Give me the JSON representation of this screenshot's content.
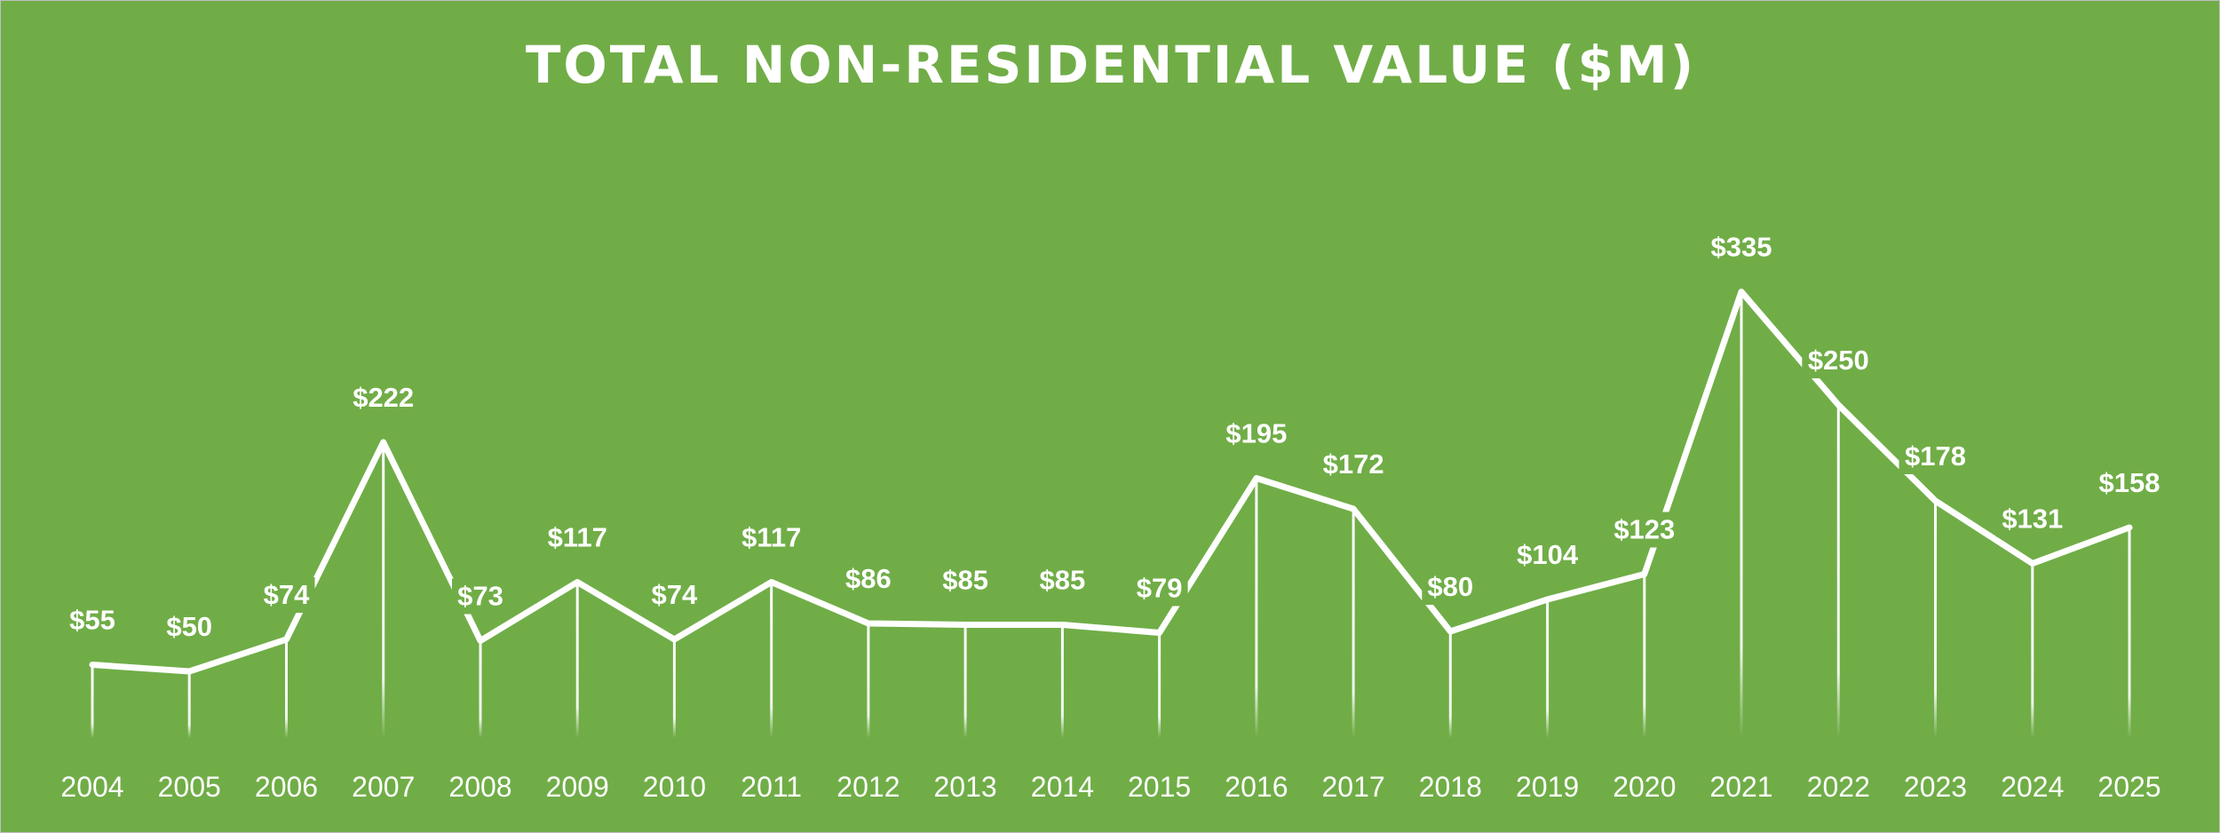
{
  "chart_data": {
    "type": "line",
    "title": "TOTAL NON-RESIDENTIAL VALUE ($M)",
    "xlabel": "",
    "ylabel": "",
    "categories": [
      "2004",
      "2005",
      "2006",
      "2007",
      "2008",
      "2009",
      "2010",
      "2011",
      "2012",
      "2013",
      "2014",
      "2015",
      "2016",
      "2017",
      "2018",
      "2019",
      "2020",
      "2021",
      "2022",
      "2023",
      "2024",
      "2025"
    ],
    "values": [
      55,
      50,
      74,
      222,
      73,
      117,
      74,
      117,
      86,
      85,
      85,
      79,
      195,
      172,
      80,
      104,
      123,
      335,
      250,
      178,
      131,
      158
    ],
    "data_labels": [
      "$55",
      "$50",
      "$74",
      "$222",
      "$73",
      "$117",
      "$74",
      "$117",
      "$86",
      "$85",
      "$85",
      "$79",
      "$195",
      "$172",
      "$80",
      "$104",
      "$123",
      "$335",
      "$250",
      "$178",
      "$131",
      "$158"
    ],
    "ylim": [
      0,
      400
    ],
    "grid": false,
    "legend": "none",
    "drop_lines": true,
    "colors": {
      "background": "#70ad47",
      "line": "#ffffff",
      "text": "#ffffff",
      "border": "#bfbfbf"
    }
  }
}
